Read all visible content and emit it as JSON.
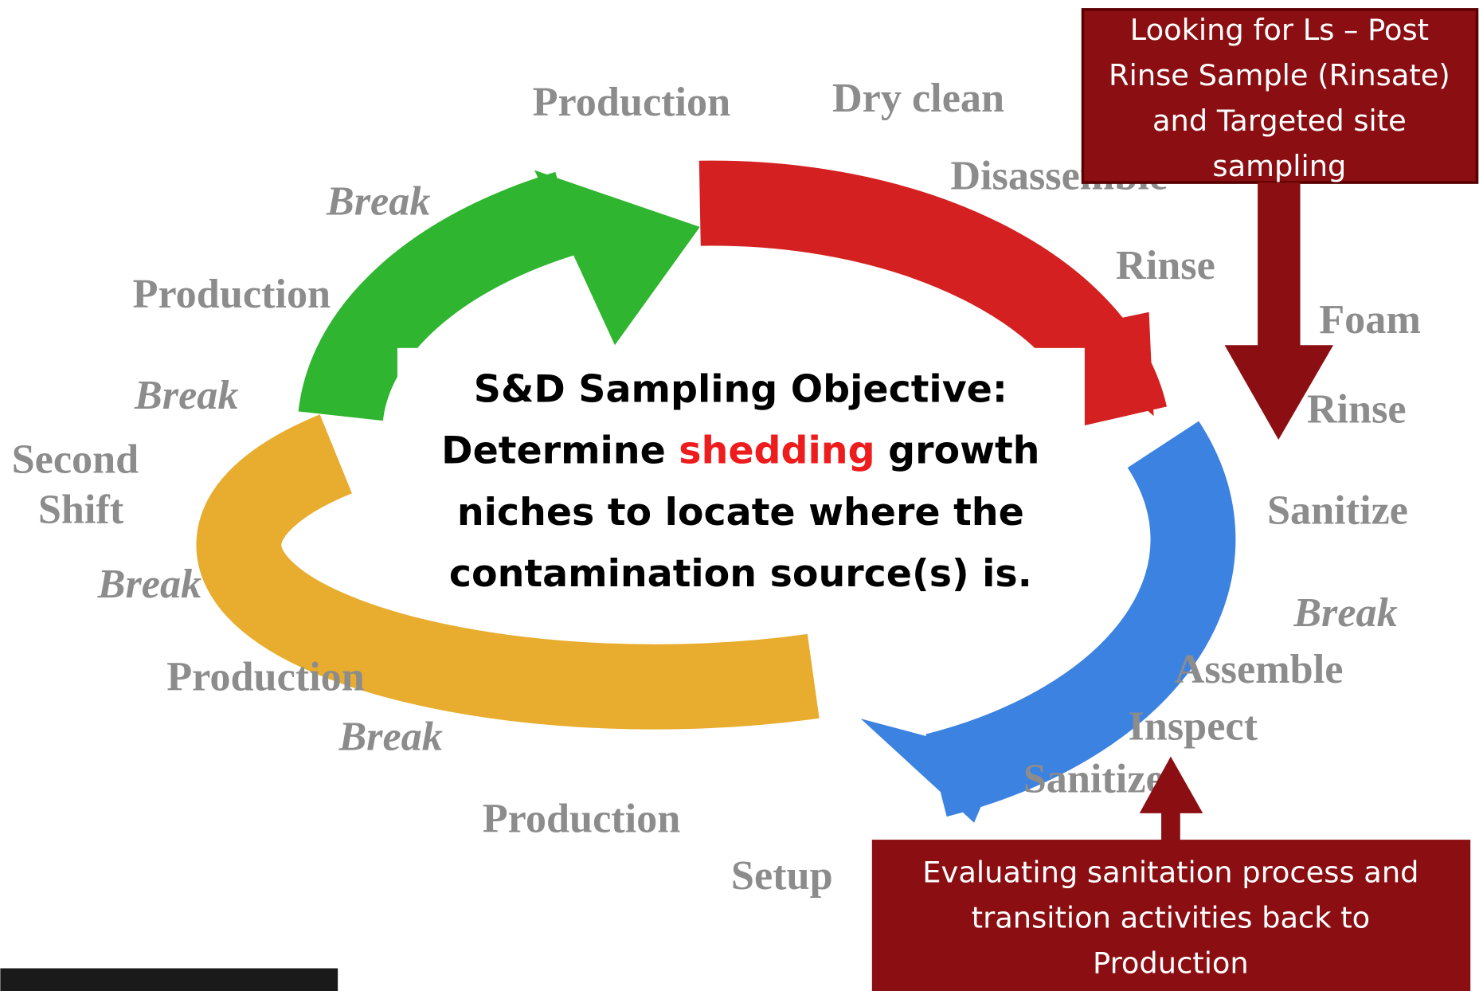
{
  "cycle_labels": [
    "Production",
    "Dry clean",
    "Disassemble",
    "Rinse",
    "Foam",
    "Rinse",
    "Sanitize",
    "Break",
    "Assemble",
    "Inspect",
    "Sanitize",
    "Setup",
    "Production",
    "Break",
    "Production",
    "Break",
    "Second",
    "Shift",
    "Break",
    "Production",
    "Break"
  ],
  "objective": {
    "line1": "S&D Sampling Objective:",
    "line2_start": "Determine ",
    "highlight": "shedding",
    "line2_end": " growth",
    "line3": "niches to locate where the",
    "line4": "contamination source(s) is."
  },
  "callout_top": [
    "Looking for Ls – Post",
    "Rinse Sample (Rinsate)",
    "and Targeted site",
    "sampling"
  ],
  "callout_bottom": [
    "Evaluating sanitation process and",
    "transition activities back to",
    "Production"
  ]
}
